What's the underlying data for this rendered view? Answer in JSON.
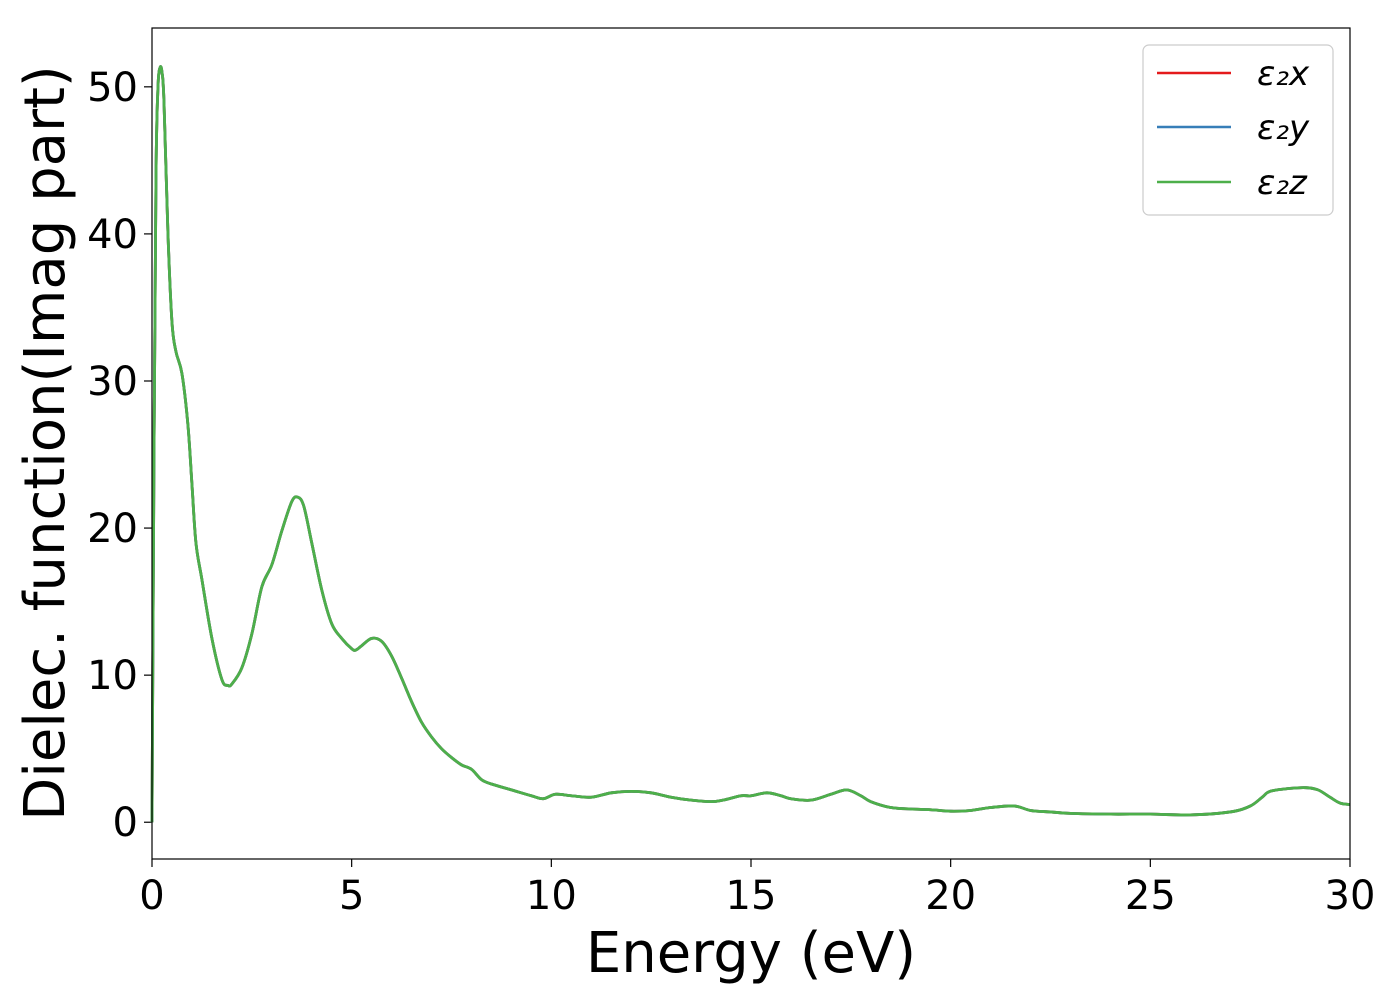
{
  "chart_data": {
    "type": "line",
    "title": "",
    "xlabel": "Energy (eV)",
    "ylabel": "Dielec. function(Imag part)",
    "xlim": [
      0,
      30
    ],
    "ylim": [
      -2.5,
      54
    ],
    "xticks": [
      0,
      5,
      10,
      15,
      20,
      25,
      30
    ],
    "yticks": [
      0,
      10,
      20,
      30,
      40,
      50
    ],
    "grid": false,
    "legend_position": "top-right",
    "series": [
      {
        "name": "ε₂x",
        "color": "#e41a1c"
      },
      {
        "name": "ε₂y",
        "color": "#377eb8"
      },
      {
        "name": "ε₂z",
        "color": "#4daf4a"
      }
    ],
    "x": [
      0,
      0.05,
      0.1,
      0.15,
      0.2,
      0.25,
      0.3,
      0.4,
      0.5,
      0.6,
      0.75,
      0.9,
      1.0,
      1.1,
      1.25,
      1.5,
      1.75,
      1.9,
      2.0,
      2.25,
      2.5,
      2.75,
      3.0,
      3.25,
      3.5,
      3.65,
      3.8,
      4.0,
      4.25,
      4.5,
      4.75,
      5.0,
      5.1,
      5.25,
      5.5,
      5.75,
      6.0,
      6.25,
      6.5,
      6.75,
      7.0,
      7.25,
      7.5,
      7.75,
      8.0,
      8.25,
      8.5,
      9.0,
      9.5,
      9.8,
      10.1,
      10.5,
      11.0,
      11.5,
      12.0,
      12.5,
      13.0,
      13.5,
      14.0,
      14.3,
      14.75,
      15.0,
      15.4,
      15.75,
      16.0,
      16.5,
      17.0,
      17.4,
      17.75,
      18.0,
      18.5,
      19.0,
      19.5,
      20.0,
      20.5,
      21.0,
      21.6,
      22.0,
      22.5,
      23.0,
      24.0,
      25.0,
      26.0,
      27.0,
      27.5,
      27.8,
      28.0,
      28.5,
      28.9,
      29.2,
      29.5,
      29.75,
      30.0
    ],
    "values": [
      0,
      25,
      44,
      50,
      51.3,
      51.0,
      49,
      40,
      34,
      32,
      30.5,
      27,
      23,
      19,
      16.5,
      12.5,
      9.7,
      9.3,
      9.4,
      10.5,
      12.8,
      16,
      17.5,
      19.8,
      21.8,
      22.1,
      21.5,
      19,
      15.8,
      13.5,
      12.5,
      11.8,
      11.7,
      12.0,
      12.5,
      12.3,
      11.3,
      9.8,
      8.2,
      6.8,
      5.8,
      5.0,
      4.4,
      3.9,
      3.6,
      2.9,
      2.6,
      2.2,
      1.8,
      1.6,
      1.9,
      1.8,
      1.7,
      2.0,
      2.1,
      2.0,
      1.7,
      1.5,
      1.4,
      1.5,
      1.8,
      1.8,
      2.0,
      1.8,
      1.6,
      1.5,
      1.9,
      2.2,
      1.8,
      1.4,
      1.0,
      0.9,
      0.85,
      0.75,
      0.8,
      1.0,
      1.1,
      0.8,
      0.7,
      0.6,
      0.55,
      0.55,
      0.5,
      0.7,
      1.1,
      1.7,
      2.1,
      2.3,
      2.35,
      2.2,
      1.7,
      1.3,
      1.2
    ]
  }
}
